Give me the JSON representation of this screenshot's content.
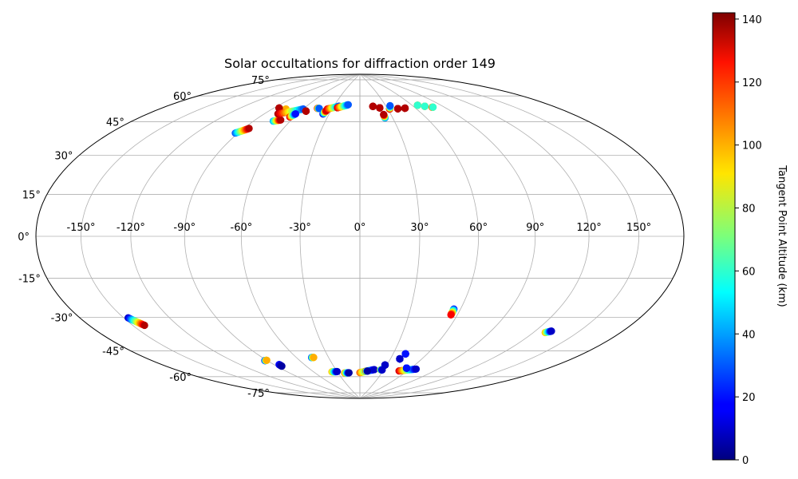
{
  "chart_data": {
    "type": "scatter",
    "projection": "hammer",
    "title": "Solar occultations for diffraction order 149",
    "grid": true,
    "longitude_ticks": [
      -150,
      -120,
      -90,
      -60,
      -30,
      0,
      30,
      60,
      90,
      120,
      150
    ],
    "longitude_tick_labels": [
      "-150°",
      "-120°",
      "-90°",
      "-60°",
      "-30°",
      "0°",
      "30°",
      "60°",
      "90°",
      "120°",
      "150°"
    ],
    "latitude_ticks": [
      -75,
      -60,
      -45,
      -30,
      -15,
      0,
      15,
      30,
      45,
      60,
      75
    ],
    "latitude_tick_labels": [
      "-75°",
      "-60°",
      "-45°",
      "-30°",
      "-15°",
      "0°",
      "15°",
      "30°",
      "45°",
      "60°",
      "75°"
    ],
    "colorbar": {
      "label": "Tangent Point Altitude (km)",
      "range": [
        0,
        142
      ],
      "ticks": [
        0,
        20,
        40,
        60,
        80,
        100,
        120,
        140
      ],
      "tick_labels": [
        "0",
        "20",
        "40",
        "60",
        "80",
        "100",
        "120",
        "140"
      ],
      "colormap": "jet"
    },
    "occultations": [
      {
        "lon_start": -147,
        "lat_start": -34,
        "lon_end": -142,
        "lat_end": -38,
        "alt_start": 10,
        "alt_end": 135
      },
      {
        "lon_start": -92,
        "lat_start": -62,
        "lon_end": -90,
        "lat_end": -62,
        "alt_start": 10,
        "alt_end": 100
      },
      {
        "lon_start": -85,
        "lat_start": -65,
        "lon_end": -85,
        "lat_end": -66,
        "alt_start": 20,
        "alt_end": 5
      },
      {
        "lon_start": -46,
        "lat_start": -63,
        "lon_end": -44,
        "lat_end": -63,
        "alt_start": 20,
        "alt_end": 100
      },
      {
        "lon_start": -37,
        "lat_start": -72,
        "lon_end": -30,
        "lat_end": -72,
        "alt_start": 100,
        "alt_end": 10
      },
      {
        "lon_start": -21,
        "lat_start": -73,
        "lon_end": -15,
        "lat_end": -73,
        "alt_start": 110,
        "alt_end": 5
      },
      {
        "lon_start": 0,
        "lat_start": -73,
        "lon_end": 18,
        "lat_end": -71,
        "alt_start": 110,
        "alt_end": 10
      },
      {
        "lon_start": 8,
        "lat_start": -72,
        "lon_end": 10,
        "lat_end": -72,
        "alt_start": 130,
        "alt_end": 5
      },
      {
        "lon_start": 26,
        "lat_start": -71,
        "lon_end": 28,
        "lat_end": -71,
        "alt_start": 100,
        "alt_end": 10
      },
      {
        "lon_start": 28,
        "lat_start": -68,
        "lon_end": 28,
        "lat_end": -68,
        "alt_start": 10,
        "alt_end": 10
      },
      {
        "lon_start": 39,
        "lat_start": -64,
        "lon_end": 39,
        "lat_end": -64,
        "alt_start": 10,
        "alt_end": 10
      },
      {
        "lon_start": 41,
        "lat_start": -61,
        "lon_end": 41,
        "lat_end": -61,
        "alt_start": 20,
        "alt_end": 20
      },
      {
        "lon_start": 50,
        "lat_start": -71,
        "lon_end": 67,
        "lat_end": -69,
        "alt_start": 130,
        "alt_end": 10
      },
      {
        "lon_start": 55,
        "lat_start": -69,
        "lon_end": 55,
        "lat_end": -69,
        "alt_start": 20,
        "alt_end": 20
      },
      {
        "lon_start": 56,
        "lat_start": -36,
        "lon_end": 56,
        "lat_end": -39,
        "alt_start": 20,
        "alt_end": 125
      },
      {
        "lon_start": 128,
        "lat_start": -43,
        "lon_end": 131,
        "lat_end": -42,
        "alt_start": 100,
        "alt_end": 10
      },
      {
        "lon_start": -92,
        "lat_start": 50,
        "lon_end": -86,
        "lat_end": 53,
        "alt_start": 30,
        "alt_end": 135
      },
      {
        "lon_start": -74,
        "lat_start": 58,
        "lon_end": -69,
        "lat_end": 59,
        "alt_start": 40,
        "alt_end": 135
      },
      {
        "lon_start": -79,
        "lat_start": 63,
        "lon_end": -77,
        "lat_end": 65,
        "alt_start": 30,
        "alt_end": 100
      },
      {
        "lon_start": -85,
        "lat_start": 65,
        "lon_end": -85,
        "lat_end": 65,
        "alt_start": 135,
        "alt_end": 135
      },
      {
        "lon_start": -78,
        "lat_start": 62,
        "lon_end": -60,
        "lat_end": 66,
        "alt_start": 135,
        "alt_end": 30
      },
      {
        "lon_start": -64,
        "lat_start": 61,
        "lon_end": -62,
        "lat_end": 63,
        "alt_start": 130,
        "alt_end": 20
      },
      {
        "lon_start": -55,
        "lat_start": 65,
        "lon_end": -55,
        "lat_end": 65,
        "alt_start": 135,
        "alt_end": 135
      },
      {
        "lon_start": -46,
        "lat_start": 67,
        "lon_end": -44,
        "lat_end": 67,
        "alt_start": 135,
        "alt_end": 30
      },
      {
        "lon_start": -36,
        "lat_start": 64,
        "lon_end": -35,
        "lat_end": 66,
        "alt_start": 10,
        "alt_end": 130
      },
      {
        "lon_start": -35,
        "lat_start": 67,
        "lon_end": -24,
        "lat_end": 69,
        "alt_start": 130,
        "alt_end": 30
      },
      {
        "lon_start": -25,
        "lat_start": 68,
        "lon_end": -14,
        "lat_end": 70,
        "alt_start": 130,
        "alt_end": 30
      },
      {
        "lon_start": 15,
        "lat_start": 69,
        "lon_end": 15,
        "lat_end": 69,
        "alt_start": 135,
        "alt_end": 135
      },
      {
        "lon_start": 22,
        "lat_start": 68,
        "lon_end": 22,
        "lat_end": 68,
        "alt_start": 135,
        "alt_end": 135
      },
      {
        "lon_start": 23,
        "lat_start": 62,
        "lon_end": 23,
        "lat_end": 64,
        "alt_start": 30,
        "alt_end": 135
      },
      {
        "lon_start": 32,
        "lat_start": 67,
        "lon_end": 35,
        "lat_end": 69,
        "alt_start": 135,
        "alt_end": 30
      },
      {
        "lon_start": 41,
        "lat_start": 67,
        "lon_end": 41,
        "lat_end": 67,
        "alt_start": 135,
        "alt_end": 135
      },
      {
        "lon_start": 49,
        "lat_start": 67,
        "lon_end": 49,
        "lat_end": 67,
        "alt_start": 135,
        "alt_end": 135
      },
      {
        "lon_start": 66,
        "lat_start": 68,
        "lon_end": 66,
        "lat_end": 68,
        "alt_start": 135,
        "alt_end": 60
      },
      {
        "lon_start": 72,
        "lat_start": 67,
        "lon_end": 72,
        "lat_end": 67,
        "alt_start": 135,
        "alt_end": 60
      },
      {
        "lon_start": 78,
        "lat_start": 66,
        "lon_end": 79,
        "lat_end": 66,
        "alt_start": 135,
        "alt_end": 60
      }
    ]
  }
}
